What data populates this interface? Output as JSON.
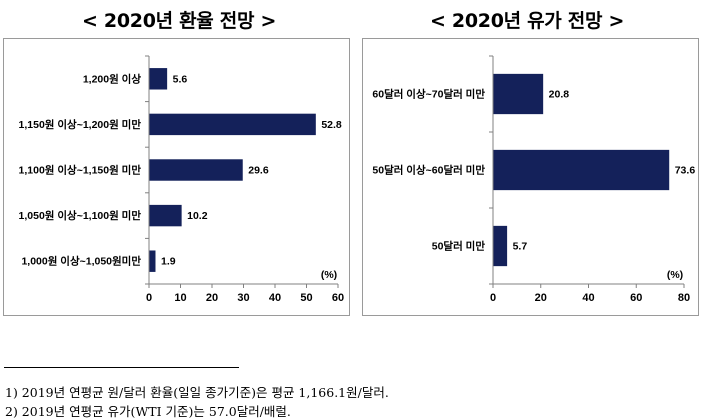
{
  "titles": {
    "left": "< 2020년 환율 전망 >",
    "right": "< 2020년 유가 전망 >"
  },
  "colors": {
    "bar": "#14215a",
    "axis": "#808080",
    "panel_border": "#9a9a9a"
  },
  "chart_data": [
    {
      "type": "bar",
      "orientation": "horizontal",
      "title": "< 2020년 환율 전망 >",
      "categories": [
        "1,200원 이상",
        "1,150원 이상~1,200원 미만",
        "1,100원 이상~1,150원 미만",
        "1,050원 이상~1,100원 미만",
        "1,000원 이상~1,050원미만"
      ],
      "values": [
        5.6,
        52.8,
        29.6,
        10.2,
        1.9
      ],
      "data_labels": [
        "5.6",
        "52.8",
        "29.6",
        "10.2",
        "1.9"
      ],
      "unit_label": "(%)",
      "xlim": [
        0,
        60
      ],
      "ticks": [
        0,
        10,
        20,
        30,
        40,
        50,
        60
      ],
      "grid": false
    },
    {
      "type": "bar",
      "orientation": "horizontal",
      "title": "< 2020년 유가 전망 >",
      "categories": [
        "60달러 이상~70달러 미만",
        "50달러 이상~60달러 미만",
        "50달러 미만"
      ],
      "values": [
        20.8,
        73.6,
        5.7
      ],
      "data_labels": [
        "20.8",
        "73.6",
        "5.7"
      ],
      "unit_label": "(%)",
      "xlim": [
        0,
        80
      ],
      "ticks": [
        0,
        20,
        40,
        60,
        80
      ],
      "grid": false
    }
  ],
  "footnotes": [
    "1) 2019년 연평균 원/달러 환율(일일 종가기준)은 평균 1,166.1원/달러.",
    "2) 2019년 연평균 유가(WTI 기준)는 57.0달러/배럴."
  ]
}
